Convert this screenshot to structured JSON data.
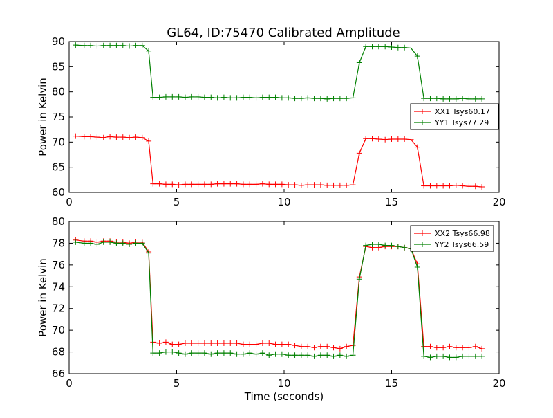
{
  "figure": {
    "title": "GL64, ID:75470 Calibrated Amplitude"
  },
  "chart_data": [
    {
      "type": "line",
      "title": "GL64, ID:75470 Calibrated Amplitude",
      "xlabel": "",
      "ylabel": "Power in Kelvin",
      "xlim": [
        0,
        20
      ],
      "ylim": [
        60,
        90
      ],
      "xticks": [
        "0",
        "5",
        "10",
        "15",
        "20"
      ],
      "yticks": [
        "60",
        "65",
        "70",
        "75",
        "80",
        "85",
        "90"
      ],
      "grid": false,
      "legend_position": "right",
      "x": [
        0.3,
        0.7,
        1.0,
        1.3,
        1.6,
        1.9,
        2.2,
        2.5,
        2.8,
        3.1,
        3.4,
        3.7,
        3.9,
        4.2,
        4.5,
        4.8,
        5.1,
        5.4,
        5.7,
        6.0,
        6.3,
        6.6,
        6.9,
        7.2,
        7.5,
        7.8,
        8.1,
        8.4,
        8.7,
        9.0,
        9.3,
        9.6,
        9.9,
        10.2,
        10.5,
        10.8,
        11.1,
        11.4,
        11.7,
        12.0,
        12.3,
        12.6,
        12.9,
        13.2,
        13.5,
        13.8,
        14.1,
        14.4,
        14.7,
        15.0,
        15.3,
        15.6,
        15.9,
        16.2,
        16.5,
        16.8,
        17.1,
        17.4,
        17.7,
        18.0,
        18.3,
        18.6,
        18.9,
        19.2
      ],
      "series": [
        {
          "name": "XX1 Tsys60.17",
          "color": "#ff0000",
          "values": [
            71.2,
            71.1,
            71.1,
            71.0,
            70.9,
            71.1,
            71.0,
            71.0,
            70.9,
            71.0,
            70.9,
            70.2,
            61.7,
            61.7,
            61.6,
            61.6,
            61.5,
            61.6,
            61.6,
            61.6,
            61.6,
            61.6,
            61.7,
            61.7,
            61.7,
            61.7,
            61.6,
            61.6,
            61.6,
            61.7,
            61.6,
            61.6,
            61.6,
            61.5,
            61.5,
            61.4,
            61.5,
            61.5,
            61.5,
            61.4,
            61.4,
            61.4,
            61.4,
            61.5,
            67.8,
            70.7,
            70.7,
            70.6,
            70.5,
            70.6,
            70.6,
            70.6,
            70.5,
            69.0,
            61.3,
            61.3,
            61.3,
            61.3,
            61.3,
            61.4,
            61.3,
            61.2,
            61.2,
            61.1
          ]
        },
        {
          "name": "YY1 Tsys77.29",
          "color": "#008000",
          "values": [
            89.3,
            89.2,
            89.2,
            89.1,
            89.2,
            89.2,
            89.2,
            89.2,
            89.1,
            89.2,
            89.2,
            88.1,
            78.9,
            78.9,
            79.0,
            79.0,
            79.0,
            78.9,
            79.0,
            79.0,
            78.9,
            78.9,
            78.8,
            78.9,
            78.8,
            78.8,
            78.9,
            78.9,
            78.8,
            78.9,
            78.9,
            78.9,
            78.8,
            78.8,
            78.7,
            78.7,
            78.8,
            78.7,
            78.7,
            78.6,
            78.7,
            78.7,
            78.7,
            78.8,
            85.8,
            89.0,
            89.0,
            89.0,
            89.0,
            88.9,
            88.8,
            88.8,
            88.7,
            87.1,
            78.7,
            78.7,
            78.7,
            78.6,
            78.6,
            78.6,
            78.7,
            78.6,
            78.6,
            78.6
          ]
        }
      ]
    },
    {
      "type": "line",
      "title": "",
      "xlabel": "Time (seconds)",
      "ylabel": "Power in Kelvin",
      "xlim": [
        0,
        20
      ],
      "ylim": [
        66,
        80
      ],
      "xticks": [
        "0",
        "5",
        "10",
        "15",
        "20"
      ],
      "yticks": [
        "66",
        "68",
        "70",
        "72",
        "74",
        "76",
        "78",
        "80"
      ],
      "grid": false,
      "legend_position": "top-right",
      "x": [
        0.3,
        0.7,
        1.0,
        1.3,
        1.6,
        1.9,
        2.2,
        2.5,
        2.8,
        3.1,
        3.4,
        3.7,
        3.9,
        4.2,
        4.5,
        4.8,
        5.1,
        5.4,
        5.7,
        6.0,
        6.3,
        6.6,
        6.9,
        7.2,
        7.5,
        7.8,
        8.1,
        8.4,
        8.7,
        9.0,
        9.3,
        9.6,
        9.9,
        10.2,
        10.5,
        10.8,
        11.1,
        11.4,
        11.7,
        12.0,
        12.3,
        12.6,
        12.9,
        13.2,
        13.5,
        13.8,
        14.1,
        14.4,
        14.7,
        15.0,
        15.3,
        15.6,
        15.9,
        16.2,
        16.5,
        16.8,
        17.1,
        17.4,
        17.7,
        18.0,
        18.3,
        18.6,
        18.9,
        19.2
      ],
      "series": [
        {
          "name": "XX2 Tsys66.98",
          "color": "#ff0000",
          "values": [
            78.3,
            78.2,
            78.2,
            78.1,
            78.2,
            78.2,
            78.1,
            78.1,
            78.0,
            78.1,
            78.1,
            77.2,
            68.9,
            68.8,
            68.9,
            68.7,
            68.7,
            68.8,
            68.8,
            68.8,
            68.8,
            68.8,
            68.8,
            68.8,
            68.8,
            68.8,
            68.7,
            68.7,
            68.7,
            68.8,
            68.8,
            68.7,
            68.7,
            68.7,
            68.6,
            68.5,
            68.5,
            68.4,
            68.5,
            68.5,
            68.4,
            68.3,
            68.5,
            68.6,
            74.9,
            77.7,
            77.6,
            77.6,
            77.7,
            77.7,
            77.7,
            77.6,
            77.5,
            76.1,
            68.5,
            68.5,
            68.4,
            68.4,
            68.5,
            68.4,
            68.4,
            68.4,
            68.5,
            68.3
          ]
        },
        {
          "name": "YY2 Tsys66.59",
          "color": "#008000",
          "values": [
            78.1,
            78.0,
            78.0,
            77.9,
            78.1,
            78.1,
            78.0,
            78.0,
            77.9,
            78.0,
            78.0,
            77.1,
            67.9,
            67.9,
            68.0,
            68.0,
            67.9,
            67.8,
            67.9,
            67.9,
            67.9,
            67.8,
            67.9,
            67.9,
            67.9,
            67.8,
            67.8,
            67.9,
            67.8,
            67.9,
            67.7,
            67.8,
            67.8,
            67.7,
            67.7,
            67.7,
            67.7,
            67.6,
            67.7,
            67.7,
            67.6,
            67.7,
            67.6,
            67.7,
            74.7,
            77.8,
            77.9,
            77.9,
            77.8,
            77.8,
            77.7,
            77.6,
            77.5,
            75.8,
            67.6,
            67.5,
            67.6,
            67.6,
            67.5,
            67.5,
            67.6,
            67.6,
            67.6,
            67.6
          ]
        }
      ]
    }
  ]
}
